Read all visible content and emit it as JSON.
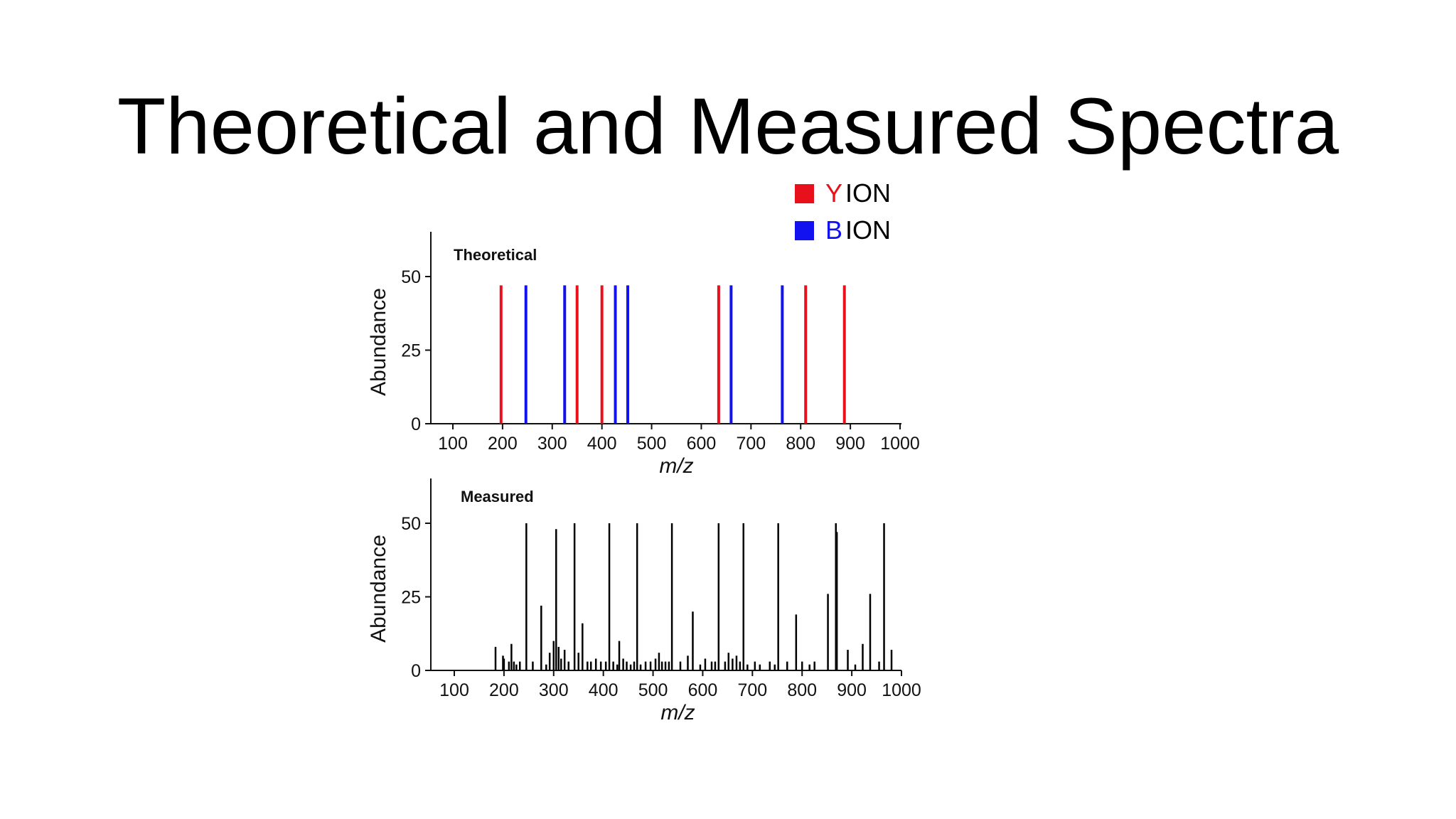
{
  "slide": {
    "title": "Theoretical and Measured Spectra"
  },
  "legend": [
    {
      "letter": "Y",
      "text": "ION",
      "color": "#e8101a"
    },
    {
      "letter": "B",
      "text": "ION",
      "color": "#1212f0"
    }
  ],
  "chart_data": [
    {
      "type": "bar",
      "panel_label": "Theoretical",
      "xlabel": "m/z",
      "ylabel": "Abundance",
      "xlim": [
        50,
        1020
      ],
      "ylim": [
        0,
        65
      ],
      "xticks": [
        100,
        200,
        300,
        400,
        500,
        600,
        700,
        800,
        900,
        1000
      ],
      "yticks": [
        0,
        25,
        50
      ],
      "series": [
        {
          "name": "Y ION",
          "color": "#e8101a",
          "x": [
            197,
            350,
            400,
            635,
            810,
            888
          ],
          "values": [
            47,
            47,
            47,
            47,
            47,
            47
          ]
        },
        {
          "name": "B ION",
          "color": "#1212f0",
          "x": [
            247,
            325,
            427,
            452,
            660,
            763
          ],
          "values": [
            47,
            47,
            47,
            47,
            47,
            47
          ]
        }
      ]
    },
    {
      "type": "bar",
      "panel_label": "Measured",
      "xlabel": "m/z",
      "ylabel": "Abundance",
      "xlim": [
        50,
        1020
      ],
      "ylim": [
        0,
        65
      ],
      "xticks": [
        100,
        200,
        300,
        400,
        500,
        600,
        700,
        800,
        900,
        1000
      ],
      "yticks": [
        0,
        25,
        50
      ],
      "series": [
        {
          "color": "#000000",
          "x": [
            183,
            198,
            200,
            210,
            215,
            220,
            225,
            232,
            245,
            258,
            275,
            285,
            292,
            300,
            305,
            310,
            315,
            322,
            330,
            342,
            350,
            358,
            368,
            375,
            385,
            395,
            405,
            412,
            420,
            428,
            432,
            440,
            447,
            455,
            462,
            468,
            475,
            485,
            495,
            505,
            512,
            518,
            525,
            532,
            538,
            555,
            570,
            580,
            595,
            605,
            618,
            625,
            632,
            645,
            652,
            660,
            668,
            675,
            682,
            690,
            705,
            715,
            735,
            745,
            752,
            770,
            788,
            800,
            815,
            825,
            852,
            868,
            870,
            892,
            907,
            922,
            937,
            955,
            965,
            980
          ],
          "values": [
            8,
            5,
            4,
            3,
            9,
            3,
            2,
            3,
            50,
            3,
            22,
            2,
            6,
            10,
            48,
            8,
            4,
            7,
            3,
            50,
            6,
            16,
            3,
            3,
            4,
            3,
            3,
            50,
            3,
            2,
            10,
            4,
            3,
            2,
            3,
            50,
            2,
            3,
            3,
            4,
            6,
            3,
            3,
            3,
            50,
            3,
            5,
            20,
            2,
            4,
            3,
            3,
            50,
            3,
            6,
            4,
            5,
            3,
            50,
            2,
            3,
            2,
            3,
            2,
            50,
            3,
            19,
            3,
            2,
            3,
            26,
            50,
            47,
            7,
            2,
            9,
            26,
            3,
            50,
            7
          ]
        }
      ]
    }
  ]
}
